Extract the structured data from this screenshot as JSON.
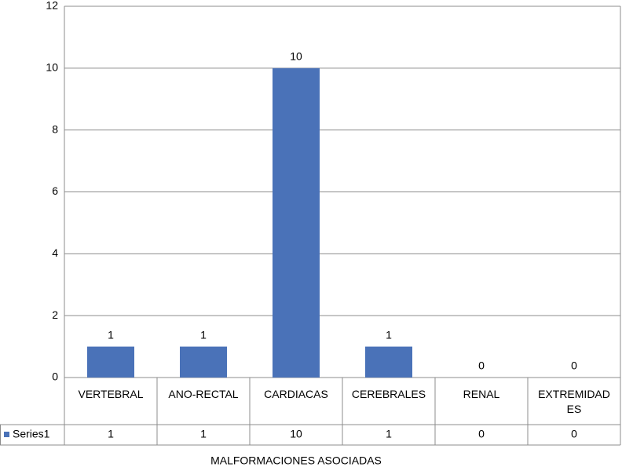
{
  "chart_data": {
    "type": "bar",
    "categories": [
      "VERTEBRAL",
      "ANO-RECTAL",
      "CARDIACAS",
      "CEREBRALES",
      "RENAL",
      "EXTREMIDADES"
    ],
    "series": [
      {
        "name": "Series1",
        "color": "#4a72b8",
        "values": [
          1,
          1,
          10,
          1,
          0,
          0
        ]
      }
    ],
    "ylim": [
      0,
      12
    ],
    "yticks": [
      0,
      2,
      4,
      6,
      8,
      10,
      12
    ],
    "grid": true,
    "x_label": "MALFORMACIONES ASOCIADAS",
    "legend": "data-table"
  }
}
